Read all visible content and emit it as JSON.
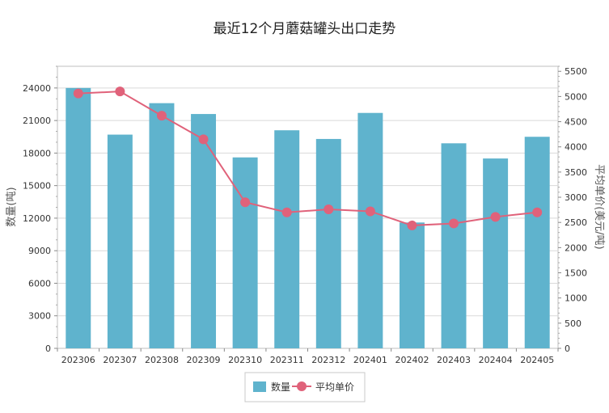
{
  "chart_data": {
    "type": "bar",
    "title": "最近12个月蘑菇罐头出口走势",
    "categories": [
      "202306",
      "202307",
      "202308",
      "202309",
      "202310",
      "202311",
      "202312",
      "202401",
      "202402",
      "202403",
      "202404",
      "202405"
    ],
    "ylabel": "数量(吨)",
    "y2label": "平均单价(美元/吨)",
    "ylim": [
      0,
      26000
    ],
    "y2lim": [
      0,
      5600
    ],
    "yticks": [
      0,
      3000,
      6000,
      9000,
      12000,
      15000,
      18000,
      21000,
      24000
    ],
    "y2ticks": [
      0,
      500,
      1000,
      1500,
      2000,
      2500,
      3000,
      3500,
      4000,
      4500,
      5000,
      5500
    ],
    "series": [
      {
        "name": "数量",
        "kind": "bar",
        "axis": "left",
        "color": "#5fb3cd",
        "values": [
          24000,
          19700,
          22600,
          21600,
          17600,
          20100,
          19300,
          21700,
          11600,
          18900,
          17500,
          19500
        ]
      },
      {
        "name": "平均单价",
        "kind": "line",
        "axis": "right",
        "color": "#e0627a",
        "values": [
          5060,
          5100,
          4620,
          4150,
          2900,
          2700,
          2760,
          2720,
          2440,
          2480,
          2610,
          2700
        ]
      }
    ],
    "grid": true,
    "legend_position": "bottom"
  }
}
